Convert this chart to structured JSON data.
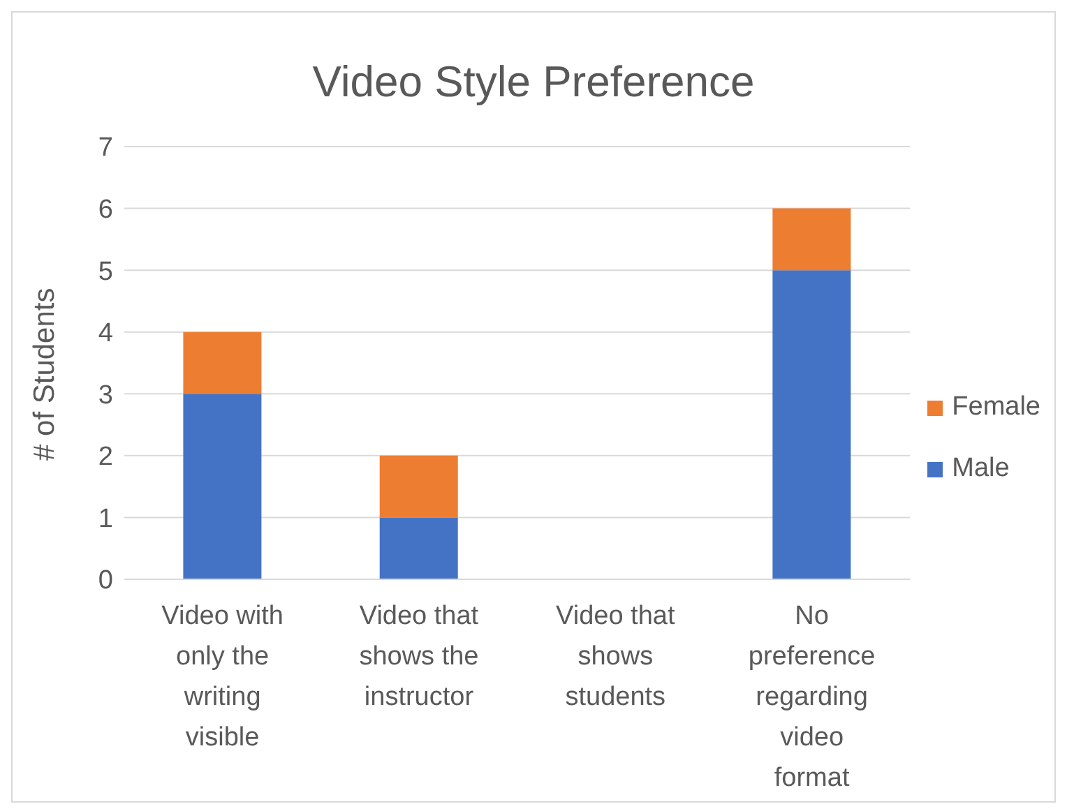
{
  "chart_data": {
    "type": "bar",
    "title": "Video Style Preference",
    "ylabel": "# of Students",
    "categories": [
      "Video with only the writing visible",
      "Video that shows the instructor",
      "Video that shows students",
      "No preference regarding video format"
    ],
    "series": [
      {
        "name": "Male",
        "color": "#4472c4",
        "values": [
          3,
          1,
          0,
          5
        ]
      },
      {
        "name": "Female",
        "color": "#ed7d31",
        "values": [
          1,
          1,
          0,
          1
        ]
      }
    ],
    "stacked": true,
    "ylim": [
      0,
      7
    ],
    "yticks": [
      0,
      1,
      2,
      3,
      4,
      5,
      6,
      7
    ],
    "grid": "y",
    "legend": "right"
  }
}
